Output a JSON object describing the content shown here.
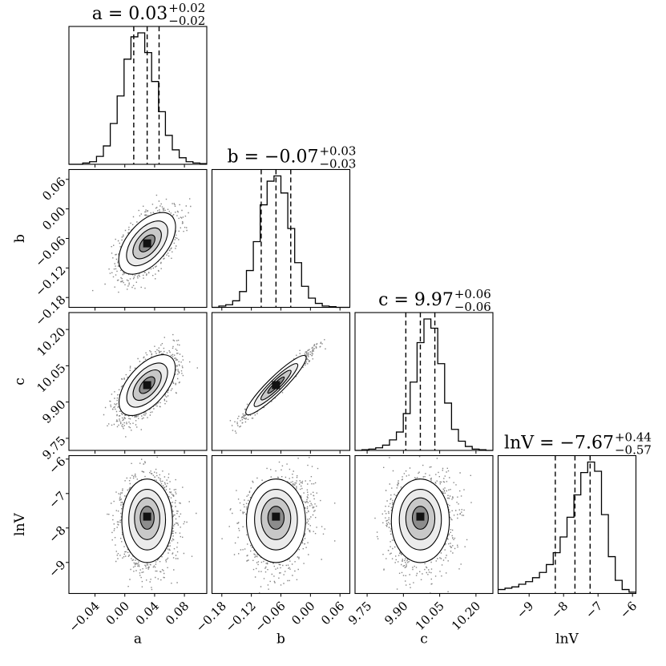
{
  "figure": {
    "type": "corner-plot",
    "background": "#ffffff",
    "ink": "#000000"
  },
  "chart_data": {
    "type": "corner",
    "parameters": [
      {
        "name": "a",
        "axis_label": "a",
        "title_main": "a = 0.03",
        "title_plus": "+0.02",
        "title_minus": "−0.02",
        "median": 0.03,
        "q16": 0.012,
        "q84": 0.046,
        "range": [
          -0.075,
          0.11
        ],
        "ticks": [
          -0.04,
          0.0,
          0.04,
          0.08
        ],
        "tick_labels": [
          "−0.04",
          "0.00",
          "0.04",
          "0.08"
        ],
        "hist": [
          0,
          0,
          0.01,
          0.02,
          0.06,
          0.14,
          0.31,
          0.52,
          0.8,
          0.97,
          1.0,
          0.85,
          0.63,
          0.4,
          0.22,
          0.11,
          0.05,
          0.02,
          0.01,
          0.005
        ]
      },
      {
        "name": "b",
        "axis_label": "b",
        "title_main": "b = −0.07",
        "title_plus": "+0.03",
        "title_minus": "−0.03",
        "median": -0.07,
        "q16": -0.1,
        "q84": -0.04,
        "range": [
          -0.2,
          0.08
        ],
        "ticks": [
          -0.18,
          -0.12,
          -0.06,
          0.0,
          0.06
        ],
        "tick_labels": [
          "−0.18",
          "−0.12",
          "−0.06",
          "0.00",
          "0.06"
        ],
        "hist": [
          0,
          0.01,
          0.02,
          0.05,
          0.12,
          0.28,
          0.5,
          0.78,
          0.96,
          1.0,
          0.87,
          0.6,
          0.34,
          0.16,
          0.07,
          0.03,
          0.01,
          0.005,
          0,
          0
        ]
      },
      {
        "name": "c",
        "axis_label": "c",
        "title_main": "c = 9.97",
        "title_plus": "+0.06",
        "title_minus": "−0.06",
        "median": 9.97,
        "q16": 9.91,
        "q84": 10.03,
        "range": [
          9.7,
          10.27
        ],
        "ticks": [
          9.75,
          9.9,
          10.05,
          10.2
        ],
        "tick_labels": [
          "9.75",
          "9.90",
          "10.05",
          "10.20"
        ],
        "hist": [
          0,
          0.005,
          0.01,
          0.02,
          0.04,
          0.08,
          0.14,
          0.28,
          0.52,
          0.82,
          1.0,
          0.93,
          0.66,
          0.36,
          0.16,
          0.07,
          0.03,
          0.01,
          0.005,
          0
        ]
      },
      {
        "name": "lnV",
        "axis_label": "lnV",
        "title_main": "lnV = −7.67",
        "title_plus": "+0.44",
        "title_minus": "−0.57",
        "median": -7.67,
        "q16": -8.24,
        "q84": -7.23,
        "range": [
          -9.9,
          -5.9
        ],
        "ticks": [
          -9,
          -8,
          -7,
          -6
        ],
        "tick_labels": [
          "−9",
          "−8",
          "−7",
          "−6"
        ],
        "hist": [
          0.03,
          0.04,
          0.05,
          0.07,
          0.09,
          0.12,
          0.16,
          0.22,
          0.31,
          0.43,
          0.58,
          0.75,
          0.92,
          1.0,
          0.93,
          0.6,
          0.28,
          0.1,
          0.03,
          0.01
        ]
      }
    ],
    "left_ticks": {
      "b": {
        "ticks": [
          -0.18,
          -0.12,
          -0.06,
          0.0,
          0.06
        ],
        "tick_labels": [
          "−0.18",
          "−0.12",
          "−0.06",
          "0.00",
          "0.06"
        ]
      },
      "c": {
        "ticks": [
          9.75,
          9.9,
          10.05,
          10.2
        ],
        "tick_labels": [
          "9.75",
          "9.90",
          "10.05",
          "10.20"
        ]
      },
      "lnV": {
        "ticks": [
          -9,
          -8,
          -7,
          -6
        ],
        "tick_labels": [
          "−9",
          "−8",
          "−7",
          "−6"
        ]
      }
    },
    "correlations": [
      {
        "x": "a",
        "y": "b",
        "rho": 0.55
      },
      {
        "x": "a",
        "y": "c",
        "rho": 0.6
      },
      {
        "x": "b",
        "y": "c",
        "rho": 0.97
      },
      {
        "x": "a",
        "y": "lnV",
        "rho": 0.05
      },
      {
        "x": "b",
        "y": "lnV",
        "rho": 0.15
      },
      {
        "x": "c",
        "y": "lnV",
        "rho": 0.1
      }
    ],
    "quantile_lines": "dashed",
    "density_levels": [
      0.12,
      0.39,
      0.68,
      0.86
    ]
  }
}
